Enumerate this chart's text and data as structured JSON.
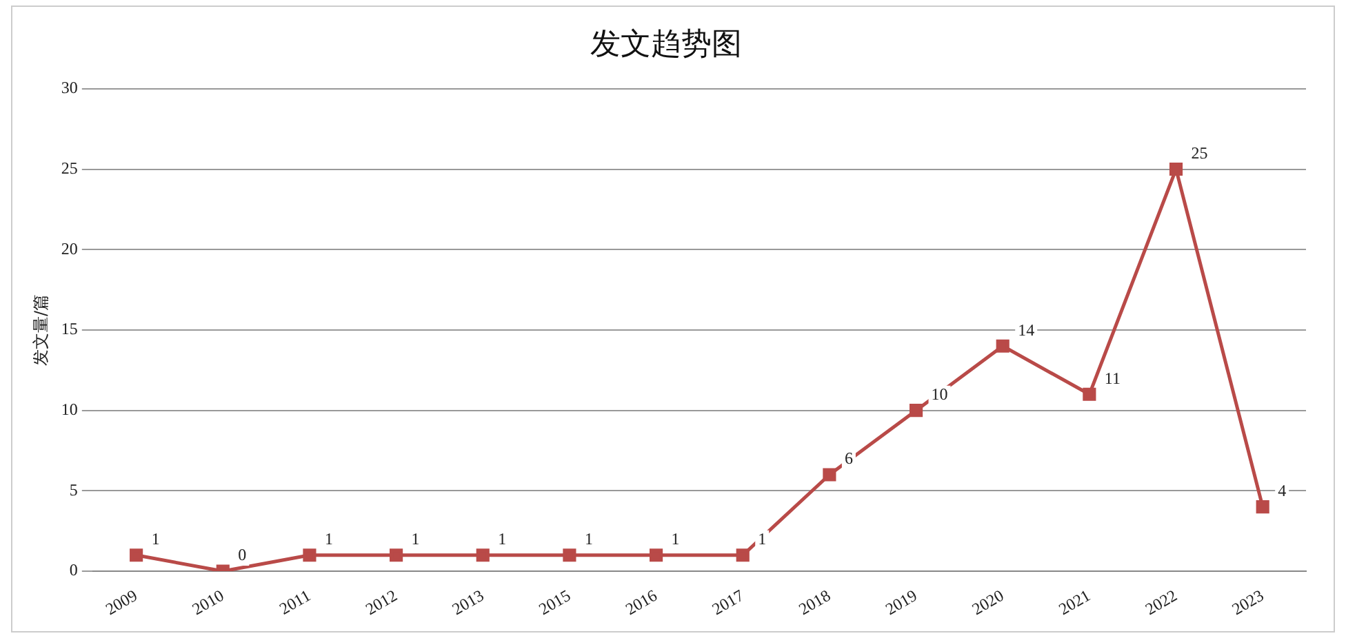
{
  "chart_data": {
    "type": "line",
    "title": "发文趋势图",
    "ylabel": "发文量/篇",
    "categories": [
      "2009",
      "2010",
      "2011",
      "2012",
      "2013",
      "2015",
      "2016",
      "2017",
      "2018",
      "2019",
      "2020",
      "2021",
      "2022",
      "2023"
    ],
    "series": [
      {
        "color": "#b94a48",
        "values": [
          1,
          0,
          1,
          1,
          1,
          1,
          1,
          1,
          6,
          10,
          14,
          11,
          25,
          4
        ]
      }
    ],
    "ylim": [
      0,
      30
    ],
    "yticks": [
      0,
      5,
      10,
      15,
      20,
      25,
      30
    ],
    "grid": "y",
    "marker": "square",
    "line_style": "solid",
    "data_labels": true,
    "legend": false
  }
}
